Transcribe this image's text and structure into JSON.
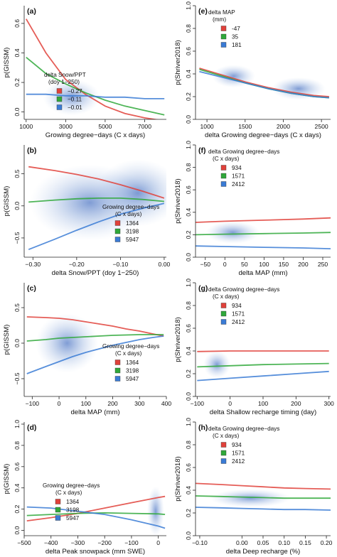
{
  "chart_data": [
    {
      "id": "a",
      "panel_label": "(a)",
      "type": "line",
      "xlabel": "Growing degree−days (C x days)",
      "ylabel": "p(GISSM)",
      "xlim": [
        900,
        8100
      ],
      "ylim": [
        -0.05,
        0.72
      ],
      "xticks": [
        1000,
        3000,
        5000,
        7000
      ],
      "yticks": [
        0.0,
        0.2,
        0.4,
        0.6
      ],
      "xtick_labels": [
        "1000",
        "3000",
        "5000",
        "7000"
      ],
      "ytick_labels": [
        "0.0",
        "0.2",
        "0.4",
        "0.6"
      ],
      "legend": {
        "title_lines": [
          "delta Snow/PPT",
          "(doy 1−250)"
        ],
        "position": "left"
      },
      "series": [
        {
          "name": "−0.27",
          "color": "#e0413a",
          "x": [
            1000,
            2000,
            3000,
            4000,
            5000,
            6000,
            7000,
            8000
          ],
          "y": [
            0.63,
            0.4,
            0.22,
            0.12,
            0.04,
            -0.01,
            -0.04,
            -0.06
          ]
        },
        {
          "name": "−0.11",
          "color": "#2fa83a",
          "x": [
            1000,
            2000,
            3000,
            4000,
            5000,
            6000,
            7000,
            8000
          ],
          "y": [
            0.37,
            0.26,
            0.19,
            0.13,
            0.08,
            0.04,
            0.01,
            -0.02
          ]
        },
        {
          "name": "−0.01",
          "color": "#3a7bd5",
          "x": [
            1000,
            2000,
            3000,
            4000,
            5000,
            6000,
            7000,
            8000
          ],
          "y": [
            0.12,
            0.12,
            0.11,
            0.11,
            0.1,
            0.1,
            0.09,
            0.09
          ]
        }
      ]
    },
    {
      "id": "e",
      "panel_label": "(e)",
      "type": "line",
      "xlabel": "delta Growing degree−days (C x days)",
      "ylabel": "p(Shriver2018)",
      "xlim": [
        850,
        2620
      ],
      "ylim": [
        0.0,
        1.0
      ],
      "xticks": [
        1000,
        1500,
        2000,
        2500
      ],
      "yticks": [
        0.0,
        0.2,
        0.4,
        0.6,
        0.8,
        1.0
      ],
      "xtick_labels": [
        "1000",
        "1500",
        "2000",
        "2500"
      ],
      "ytick_labels": [
        "0.0",
        "0.2",
        "0.4",
        "0.6",
        "0.8",
        "1.0"
      ],
      "legend": {
        "title_lines": [
          "delta MAP",
          "(mm)"
        ],
        "position": "top-left"
      },
      "series": [
        {
          "name": "-47",
          "color": "#e0413a",
          "x": [
            900,
            1200,
            1500,
            1800,
            2100,
            2400,
            2600
          ],
          "y": [
            0.45,
            0.39,
            0.33,
            0.28,
            0.24,
            0.21,
            0.2
          ]
        },
        {
          "name": "35",
          "color": "#2fa83a",
          "x": [
            900,
            1200,
            1500,
            1800,
            2100,
            2400,
            2600
          ],
          "y": [
            0.44,
            0.38,
            0.32,
            0.27,
            0.23,
            0.2,
            0.19
          ]
        },
        {
          "name": "181",
          "color": "#3a7bd5",
          "x": [
            900,
            1200,
            1500,
            1800,
            2100,
            2400,
            2600
          ],
          "y": [
            0.42,
            0.37,
            0.32,
            0.27,
            0.23,
            0.2,
            0.19
          ]
        }
      ]
    },
    {
      "id": "b",
      "panel_label": "(b)",
      "type": "line",
      "xlabel": "delta Snow/PPT (doy 1−250)",
      "ylabel": "p(GISSM)",
      "xlim": [
        -0.32,
        0.005
      ],
      "ylim": [
        -0.8,
        0.95
      ],
      "xticks": [
        -0.3,
        -0.2,
        -0.1,
        0.0
      ],
      "yticks": [
        -0.5,
        0.0,
        0.5
      ],
      "xtick_labels": [
        "−0.30",
        "−0.20",
        "−0.10",
        "0.00"
      ],
      "ytick_labels": [
        "−0.5",
        "0.0",
        "0.5"
      ],
      "legend": {
        "title_lines": [
          "Growing degree−days",
          "(C x days)"
        ],
        "position": "bottom-right"
      },
      "series": [
        {
          "name": "1364",
          "color": "#e0413a",
          "x": [
            -0.31,
            -0.25,
            -0.2,
            -0.15,
            -0.1,
            -0.05,
            0.0
          ],
          "y": [
            0.61,
            0.55,
            0.49,
            0.42,
            0.33,
            0.23,
            0.12
          ]
        },
        {
          "name": "3198",
          "color": "#2fa83a",
          "x": [
            -0.31,
            -0.25,
            -0.2,
            -0.15,
            -0.1,
            -0.05,
            0.0
          ],
          "y": [
            0.06,
            0.09,
            0.11,
            0.12,
            0.12,
            0.1,
            0.07
          ]
        },
        {
          "name": "5947",
          "color": "#3a7bd5",
          "x": [
            -0.31,
            -0.25,
            -0.2,
            -0.15,
            -0.1,
            -0.05,
            0.0
          ],
          "y": [
            -0.68,
            -0.52,
            -0.38,
            -0.25,
            -0.13,
            -0.04,
            0.04
          ]
        }
      ]
    },
    {
      "id": "f",
      "panel_label": "(f)",
      "type": "line",
      "xlabel": "delta MAP (mm)",
      "ylabel": "p(Shriver2018)",
      "xlim": [
        -75,
        270
      ],
      "ylim": [
        0.0,
        1.0
      ],
      "xticks": [
        -50,
        0,
        50,
        100,
        150,
        200,
        250
      ],
      "yticks": [
        0.0,
        0.2,
        0.4,
        0.6,
        0.8,
        1.0
      ],
      "xtick_labels": [
        "−50",
        "0",
        "50",
        "100",
        "150",
        "200",
        "250"
      ],
      "ytick_labels": [
        "0.0",
        "0.2",
        "0.4",
        "0.6",
        "0.8",
        "1.0"
      ],
      "legend": {
        "title_lines": [
          "delta Growing degree−days",
          "(C x days)"
        ],
        "position": "top-left"
      },
      "series": [
        {
          "name": "934",
          "color": "#e0413a",
          "x": [
            -75,
            0,
            100,
            200,
            270
          ],
          "y": [
            0.31,
            0.32,
            0.33,
            0.34,
            0.35
          ]
        },
        {
          "name": "1571",
          "color": "#2fa83a",
          "x": [
            -75,
            0,
            100,
            200,
            270
          ],
          "y": [
            0.2,
            0.205,
            0.21,
            0.215,
            0.22
          ]
        },
        {
          "name": "2412",
          "color": "#3a7bd5",
          "x": [
            -75,
            0,
            100,
            200,
            270
          ],
          "y": [
            0.1,
            0.095,
            0.088,
            0.082,
            0.075
          ]
        }
      ]
    },
    {
      "id": "c",
      "panel_label": "(c)",
      "type": "line",
      "xlabel": "delta MAP (mm)",
      "ylabel": "p(GISSM)",
      "xlim": [
        -130,
        400
      ],
      "ylim": [
        -0.75,
        0.85
      ],
      "xticks": [
        -100,
        0,
        100,
        200,
        300,
        400
      ],
      "yticks": [
        -0.5,
        0.0,
        0.5
      ],
      "xtick_labels": [
        "−100",
        "0",
        "100",
        "200",
        "300",
        "400"
      ],
      "ytick_labels": [
        "−0.5",
        "0.0",
        "0.5"
      ],
      "legend": {
        "title_lines": [
          "Growing degree−days",
          "(C x days)"
        ],
        "position": "bottom-right"
      },
      "series": [
        {
          "name": "1364",
          "color": "#e0413a",
          "x": [
            -120,
            -50,
            0,
            50,
            100,
            150,
            200,
            250,
            300,
            350,
            390
          ],
          "y": [
            0.37,
            0.36,
            0.35,
            0.33,
            0.3,
            0.27,
            0.24,
            0.2,
            0.17,
            0.13,
            0.1
          ]
        },
        {
          "name": "3198",
          "color": "#2fa83a",
          "x": [
            -120,
            -50,
            0,
            50,
            100,
            150,
            200,
            250,
            300,
            350,
            390
          ],
          "y": [
            0.03,
            0.05,
            0.07,
            0.08,
            0.09,
            0.1,
            0.11,
            0.115,
            0.12,
            0.12,
            0.12
          ]
        },
        {
          "name": "5947",
          "color": "#3a7bd5",
          "x": [
            -120,
            -50,
            0,
            50,
            100,
            150,
            200,
            250,
            300,
            350,
            390
          ],
          "y": [
            -0.43,
            -0.33,
            -0.26,
            -0.19,
            -0.13,
            -0.08,
            -0.03,
            0.01,
            0.05,
            0.08,
            0.1
          ]
        }
      ]
    },
    {
      "id": "g",
      "panel_label": "(g)",
      "type": "line",
      "xlabel": "delta Shallow recharge timing (day)",
      "ylabel": "p(Shriver2018)",
      "xlim": [
        -105,
        305
      ],
      "ylim": [
        0.0,
        1.0
      ],
      "xticks": [
        -100,
        0,
        100,
        200,
        300
      ],
      "yticks": [
        0.0,
        0.2,
        0.4,
        0.6,
        0.8,
        1.0
      ],
      "xtick_labels": [
        "−100",
        "0",
        "100",
        "200",
        "300"
      ],
      "ytick_labels": [
        "0.0",
        "0.2",
        "0.4",
        "0.6",
        "0.8",
        "1.0"
      ],
      "legend": {
        "title_lines": [
          "delta Growing degree−days",
          "(C x days)"
        ],
        "position": "top-left"
      },
      "series": [
        {
          "name": "934",
          "color": "#e0413a",
          "x": [
            -100,
            0,
            100,
            200,
            300
          ],
          "y": [
            0.395,
            0.4,
            0.4,
            0.4,
            0.4
          ]
        },
        {
          "name": "1571",
          "color": "#2fa83a",
          "x": [
            -100,
            0,
            100,
            200,
            300
          ],
          "y": [
            0.26,
            0.27,
            0.28,
            0.285,
            0.29
          ]
        },
        {
          "name": "2412",
          "color": "#3a7bd5",
          "x": [
            -100,
            0,
            100,
            200,
            300
          ],
          "y": [
            0.14,
            0.16,
            0.18,
            0.2,
            0.22
          ]
        }
      ]
    },
    {
      "id": "d",
      "panel_label": "(d)",
      "type": "line",
      "xlabel": "delta Peak snowpack (mm SWE)",
      "ylabel": "p(GISSM)",
      "xlim": [
        -500,
        30
      ],
      "ylim": [
        -0.05,
        1.02
      ],
      "xticks": [
        -500,
        -400,
        -300,
        -200,
        -100,
        0
      ],
      "yticks": [
        0.0,
        0.2,
        0.4,
        0.6,
        0.8,
        1.0
      ],
      "xtick_labels": [
        "−500",
        "−400",
        "−300",
        "−200",
        "−100",
        "0"
      ],
      "ytick_labels": [
        "0.0",
        "0.2",
        "0.4",
        "0.6",
        "0.8",
        "1.0"
      ],
      "legend": {
        "title_lines": [
          "Growing degree−days",
          "(C x days)"
        ],
        "position": "bottom-left"
      },
      "series": [
        {
          "name": "1364",
          "color": "#e0413a",
          "x": [
            -490,
            -400,
            -300,
            -200,
            -100,
            0,
            25
          ],
          "y": [
            0.09,
            0.12,
            0.16,
            0.21,
            0.26,
            0.31,
            0.32
          ]
        },
        {
          "name": "3198",
          "color": "#2fa83a",
          "x": [
            -490,
            -400,
            -300,
            -200,
            -100,
            0,
            25
          ],
          "y": [
            0.14,
            0.15,
            0.16,
            0.165,
            0.16,
            0.155,
            0.15
          ]
        },
        {
          "name": "5947",
          "color": "#3a7bd5",
          "x": [
            -490,
            -400,
            -300,
            -200,
            -100,
            0,
            25
          ],
          "y": [
            0.22,
            0.21,
            0.18,
            0.15,
            0.1,
            0.04,
            0.02
          ]
        }
      ]
    },
    {
      "id": "h",
      "panel_label": "(h)",
      "type": "line",
      "xlabel": "delta Deep recharge (%)",
      "ylabel": "p(Shriver2018)",
      "xlim": [
        -0.11,
        0.21
      ],
      "ylim": [
        0.0,
        1.0
      ],
      "xticks": [
        -0.1,
        0.0,
        0.05,
        0.1,
        0.15,
        0.2
      ],
      "yticks": [
        0.0,
        0.2,
        0.4,
        0.6,
        0.8,
        1.0
      ],
      "xtick_labels": [
        "−0.10",
        "0.00",
        "0.05",
        "0.10",
        "0.15",
        "0.20"
      ],
      "ytick_labels": [
        "0.0",
        "0.2",
        "0.4",
        "0.6",
        "0.8",
        "1.0"
      ],
      "legend": {
        "title_lines": [
          "delta Growing degree−days",
          "(C x days)"
        ],
        "position": "top-left"
      },
      "series": [
        {
          "name": "934",
          "color": "#e0413a",
          "x": [
            -0.11,
            -0.05,
            0.0,
            0.05,
            0.1,
            0.15,
            0.21
          ],
          "y": [
            0.46,
            0.45,
            0.44,
            0.43,
            0.42,
            0.415,
            0.41
          ]
        },
        {
          "name": "1571",
          "color": "#2fa83a",
          "x": [
            -0.11,
            -0.05,
            0.0,
            0.05,
            0.1,
            0.15,
            0.21
          ],
          "y": [
            0.35,
            0.345,
            0.34,
            0.335,
            0.33,
            0.33,
            0.33
          ]
        },
        {
          "name": "2412",
          "color": "#3a7bd5",
          "x": [
            -0.11,
            -0.05,
            0.0,
            0.05,
            0.1,
            0.15,
            0.21
          ],
          "y": [
            0.25,
            0.245,
            0.24,
            0.235,
            0.23,
            0.23,
            0.225
          ]
        }
      ]
    }
  ]
}
